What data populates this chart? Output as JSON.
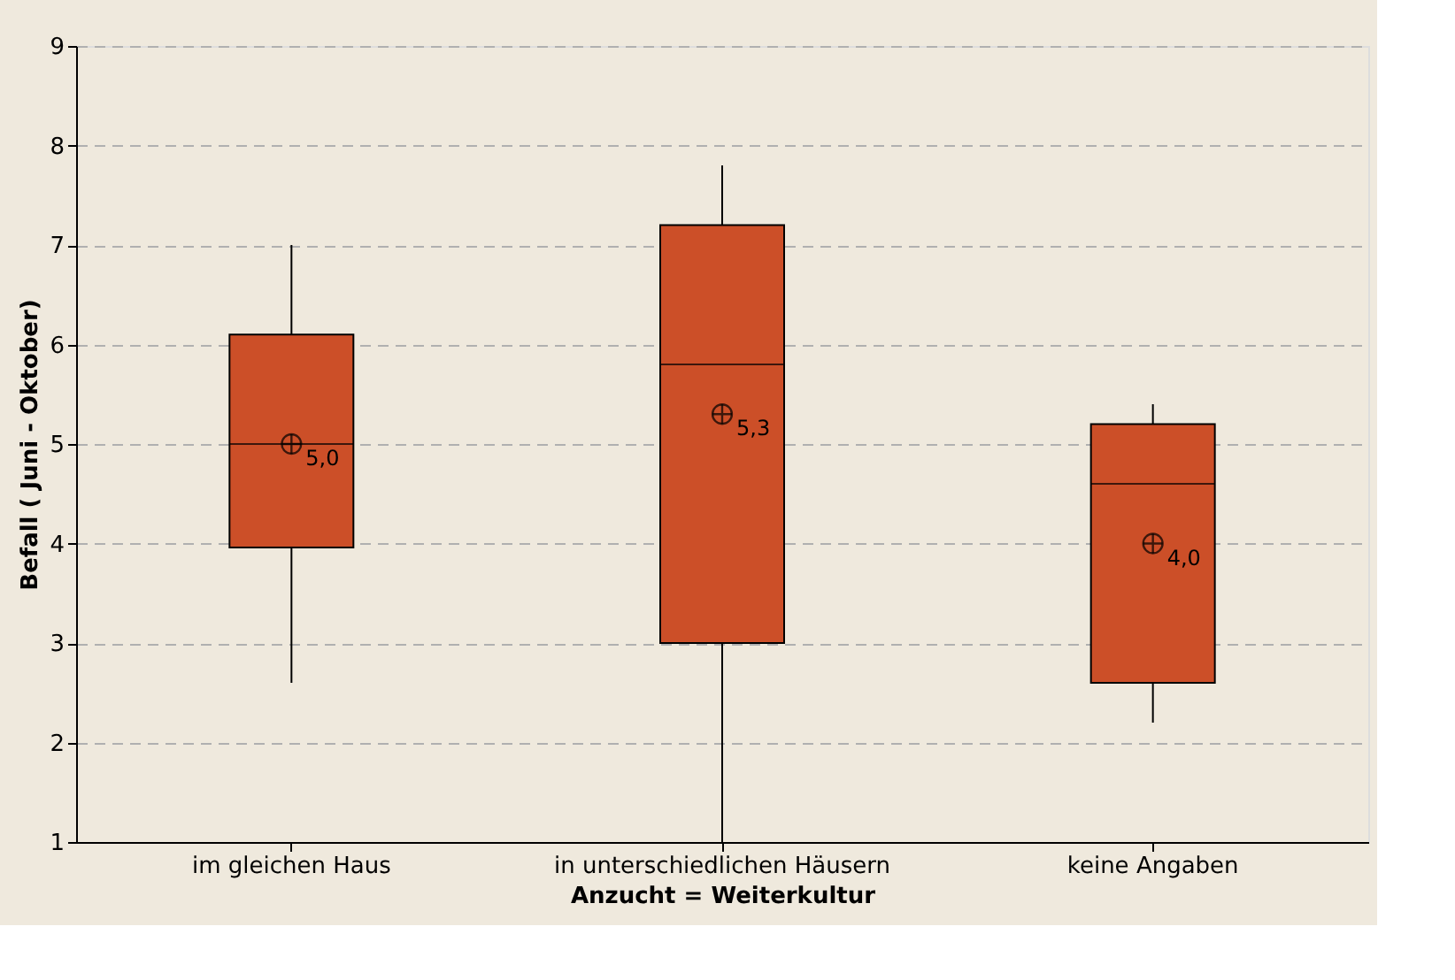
{
  "chart_data": {
    "type": "box",
    "xlabel": "Anzucht = Weiterkultur",
    "ylabel": "Befall ( Juni - Oktober)",
    "categories": [
      "im gleichen Haus",
      "in unterschiedlichen Häusern",
      "keine Angaben"
    ],
    "boxes": [
      {
        "low": 2.6,
        "q1": 3.96,
        "median": 5.0,
        "q3": 6.1,
        "high": 7.0,
        "mean": 5.0
      },
      {
        "low": 1.0,
        "q1": 3.0,
        "median": 5.8,
        "q3": 7.2,
        "high": 7.8,
        "mean": 5.3
      },
      {
        "low": 2.2,
        "q1": 2.6,
        "median": 4.6,
        "q3": 5.2,
        "high": 5.4,
        "mean": 4.0
      }
    ],
    "value_labels": [
      "5,0",
      "5,3",
      "4,0"
    ],
    "color": "#cc4f28",
    "ylim": [
      1,
      9
    ],
    "yticks": [
      1,
      2,
      3,
      4,
      5,
      6,
      7,
      8,
      9
    ],
    "grid": "y",
    "marker": "circle"
  }
}
